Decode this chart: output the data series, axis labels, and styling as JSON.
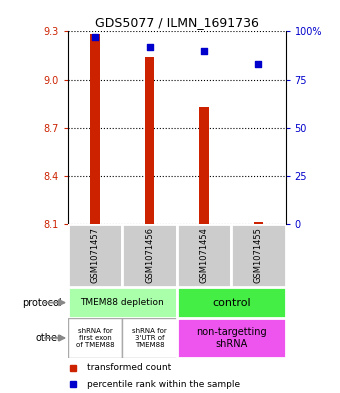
{
  "title": "GDS5077 / ILMN_1691736",
  "samples": [
    "GSM1071457",
    "GSM1071456",
    "GSM1071454",
    "GSM1071455"
  ],
  "bar_values": [
    9.285,
    9.14,
    8.83,
    8.115
  ],
  "bar_bottom": 8.1,
  "dot_values": [
    9.265,
    9.2,
    9.175,
    9.1
  ],
  "ylim": [
    8.1,
    9.3
  ],
  "yticks_left": [
    8.1,
    8.4,
    8.7,
    9.0,
    9.3
  ],
  "yticks_right": [
    0,
    25,
    50,
    75,
    100
  ],
  "bar_color": "#cc2200",
  "dot_color": "#0000cc",
  "protocol_label_left": "TMEM88 depletion",
  "protocol_label_right": "control",
  "protocol_color_left": "#aaffaa",
  "protocol_color_right": "#44ee44",
  "other_label_0": "shRNA for\nfirst exon\nof TMEM88",
  "other_label_1": "shRNA for\n3'UTR of\nTMEM88",
  "other_label_right": "non-targetting\nshRNA",
  "other_color_left": "#ffffff",
  "other_color_right": "#ee55ee",
  "legend_red": "transformed count",
  "legend_blue": "percentile rank within the sample",
  "plot_bg": "#ffffff",
  "sample_box_color": "#cccccc",
  "bar_width": 0.18
}
